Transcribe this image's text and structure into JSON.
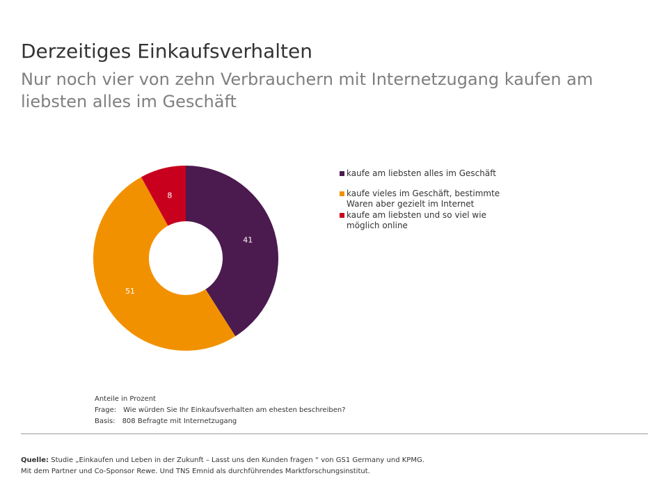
{
  "chart_data": {
    "type": "pie",
    "title": "Derzeitiges Einkaufsverhalten",
    "subtitle": "Nur noch vier von zehn Verbrauchern mit Internetzugang kaufen am liebsten alles im Geschäft",
    "slices": [
      {
        "label": "kaufe am liebsten alles im Geschäft",
        "value": 41,
        "display": "41",
        "color": "#4b1a4f",
        "label_color": "#ffffff"
      },
      {
        "label": "kaufe vieles im Geschäft, bestimmte Waren aber gezielt im Internet",
        "value": 51,
        "display": "51",
        "color": "#f29100",
        "label_color": "#ffffff"
      },
      {
        "label": "kaufe am liebsten und so viel wie möglich online",
        "value": 8,
        "display": "8",
        "color": "#c8001e",
        "label_color": "#ffffff"
      }
    ],
    "donut": true,
    "legend": "right"
  },
  "notes": {
    "unit": "Anteile in Prozent",
    "question_key": "Frage:",
    "question": "Wie würden Sie Ihr Einkaufsverhalten am ehesten beschreiben?",
    "base_key": "Basis:",
    "base": "808 Befragte mit Internetzugang"
  },
  "source": {
    "label": "Quelle:",
    "line1": "Studie „Einkaufen und Leben in der Zukunft – Lasst uns den Kunden fragen “ von GS1 Germany und KPMG.",
    "line2": "Mit dem Partner und Co-Sponsor Rewe. Und TNS Emnid als durchführendes Marktforschungsinstitut."
  }
}
